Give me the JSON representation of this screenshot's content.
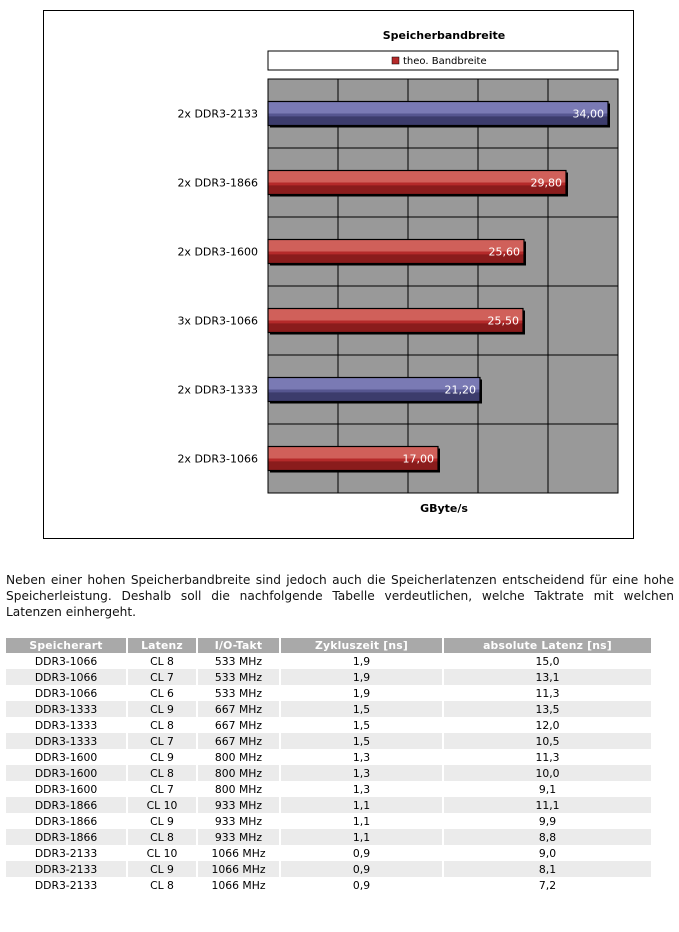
{
  "chart_data": {
    "type": "bar",
    "orientation": "horizontal",
    "title": "Speicherbandbreite",
    "legend": [
      {
        "label": "theo. Bandbreite",
        "color": "#b52a2a"
      }
    ],
    "legend_position": "top",
    "xlabel": "GByte/s",
    "ylabel": "",
    "xlim": [
      0,
      35
    ],
    "grid": true,
    "categories": [
      "2x DDR3-2133",
      "2x DDR3-1866",
      "2x DDR3-1600",
      "3x DDR3-1066",
      "2x DDR3-1333",
      "2x DDR3-1066"
    ],
    "values": [
      34.0,
      29.8,
      25.6,
      25.5,
      21.2,
      17.0
    ],
    "value_labels": [
      "34,00",
      "29,80",
      "25,60",
      "25,50",
      "21,20",
      "17,00"
    ],
    "bar_colors": [
      "#565690",
      "#b52a2a",
      "#b52a2a",
      "#b52a2a",
      "#565690",
      "#b52a2a"
    ]
  },
  "paragraph": "Neben einer hohen Speicherbandbreite sind jedoch auch die Speicherlatenzen entscheidend für eine hohe Speicherleistung. Deshalb soll die nachfolgende Tabelle verdeutlichen, welche Taktrate mit welchen Latenzen einhergeht.",
  "table": {
    "headers": [
      "Speicherart",
      "Latenz",
      "I/O-Takt",
      "Zykluszeit [ns]",
      "absolute Latenz [ns]"
    ],
    "rows": [
      [
        "DDR3-1066",
        "CL 8",
        "533 MHz",
        "1,9",
        "15,0"
      ],
      [
        "DDR3-1066",
        "CL 7",
        "533 MHz",
        "1,9",
        "13,1"
      ],
      [
        "DDR3-1066",
        "CL 6",
        "533 MHz",
        "1,9",
        "11,3"
      ],
      [
        "DDR3-1333",
        "CL 9",
        "667 MHz",
        "1,5",
        "13,5"
      ],
      [
        "DDR3-1333",
        "CL 8",
        "667 MHz",
        "1,5",
        "12,0"
      ],
      [
        "DDR3-1333",
        "CL 7",
        "667 MHz",
        "1,5",
        "10,5"
      ],
      [
        "DDR3-1600",
        "CL 9",
        "800 MHz",
        "1,3",
        "11,3"
      ],
      [
        "DDR3-1600",
        "CL 8",
        "800 MHz",
        "1,3",
        "10,0"
      ],
      [
        "DDR3-1600",
        "CL 7",
        "800 MHz",
        "1,3",
        "9,1"
      ],
      [
        "DDR3-1866",
        "CL 10",
        "933 MHz",
        "1,1",
        "11,1"
      ],
      [
        "DDR3-1866",
        "CL 9",
        "933 MHz",
        "1,1",
        "9,9"
      ],
      [
        "DDR3-1866",
        "CL 8",
        "933 MHz",
        "1,1",
        "8,8"
      ],
      [
        "DDR3-2133",
        "CL 10",
        "1066 MHz",
        "0,9",
        "9,0"
      ],
      [
        "DDR3-2133",
        "CL 9",
        "1066 MHz",
        "0,9",
        "8,1"
      ],
      [
        "DDR3-2133",
        "CL 8",
        "1066 MHz",
        "0,9",
        "7,2"
      ]
    ]
  }
}
